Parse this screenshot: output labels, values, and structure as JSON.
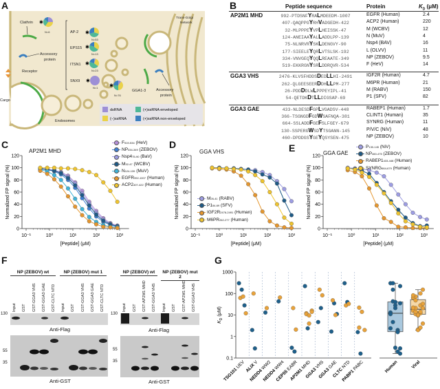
{
  "panels": {
    "a": "A",
    "b": "B",
    "c": "C",
    "d": "D",
    "e": "E",
    "f": "F",
    "g": "G"
  },
  "panel_a": {
    "clathrin": "Clathrin",
    "n_clathrin": "N=6",
    "ap2": "AP-2",
    "n_ap2": "N=53",
    "eps15": "EPS15",
    "n_eps15": "N=13",
    "itsn1": "ITSN1",
    "n_itsn1": "N=23",
    "snx9": "SNX9",
    "n_snx9": "N=1",
    "gga": "GGA1-3",
    "n_gga": "N=76",
    "accessory_left_1": "Accessory",
    "accessory_left_2": "protein",
    "accessory_right_1": "Accessory",
    "accessory_right_2": "protein",
    "receptor": "Receptor",
    "cargo": "Cargo",
    "endosomes": "Endosomes",
    "tgn_1": "Trans-Golgi",
    "tgn_2": "Network",
    "legend": [
      {
        "label": "dsRNA",
        "color": "#9d8fd6"
      },
      {
        "label": "(−)ssRNA",
        "color": "#ead24a"
      },
      {
        "label": "(+)ssRNA enveloped",
        "color": "#4fb897"
      },
      {
        "label": "(+)ssRNA non-enveloped",
        "color": "#3c7fbf"
      }
    ]
  },
  "table": {
    "headers": {
      "sequence": "Peptide sequence",
      "protein": "Protein",
      "kd": "K",
      "kd_sub": "D",
      "kd_unit": " (μM)"
    },
    "groups": [
      {
        "name": "AP2M1 MHD",
        "rows": [
          {
            "seq": [
              "992-PTDSNF",
              "Y",
              "RA",
              "L",
              "MDEEDM-1007"
            ],
            "protein": "EGFR (Human)",
            "kd": "2.4"
          },
          {
            "seq": [
              "407-QAQPPG",
              "Y",
              "RH",
              "V",
              "ADGEDH-422"
            ],
            "protein": "ACP2 (Human)",
            "kd": "220"
          },
          {
            "seq": [
              "32-MLPPPE",
              "Y",
              "VP",
              "L",
              "HEISSK-47"
            ],
            "protein": "M (WCBV)",
            "kd": "12"
          },
          {
            "seq": [
              "124-ANEIAA",
              "Y",
              "AL",
              "L",
              "ADDLPP-139"
            ],
            "protein": "N (MuV)",
            "kd": "4"
          },
          {
            "seq": [
              "75-NLNRVR",
              "Y",
              "SK",
              "L",
              "DENGVY-90"
            ],
            "protein": "Nsp4 (BAV)",
            "kd": "16"
          },
          {
            "seq": [
              "177-SIEELE",
              "Y",
              "QR",
              "L",
              "VTSLSK-192"
            ],
            "protein": "L (OLVV)",
            "kd": "11"
          },
          {
            "seq": [
              "334-VNVGEQ",
              "Y",
              "QQ",
              "L",
              "REAATE-349"
            ],
            "protein": "NP (ZEBOV)",
            "kd": "9.5"
          },
          {
            "seq": [
              "519-EKKRGN",
              "Y",
              "SR",
              "L",
              "DDRQVR-534"
            ],
            "protein": "F (HeV)",
            "kd": "14"
          }
        ]
      },
      {
        "name": "GGA3 VHS",
        "rows": [
          {
            "seq": [
              "2476-KLVSFHDDS",
              "D",
              "ED",
              "LL",
              "HI-2491"
            ],
            "protein": "IGF2R (Human)",
            "kd": "4.7"
          },
          {
            "seq": [
              "262-QLGEESEER",
              "D",
              "DH",
              "LL",
              "PM-277"
            ],
            "protein": "M6PR (Human)",
            "kd": "21"
          },
          {
            "seq": [
              "26-PDD",
              "D",
              "DLW",
              "L",
              "PPPEYIPL-41"
            ],
            "protein": "M (RABV)",
            "kd": "150"
          },
          {
            "seq": [
              "54-QETDK",
              "D",
              "T",
              "LL",
              "DIGSAP-69"
            ],
            "protein": "P1 (SFV)",
            "kd": "82"
          }
        ]
      },
      {
        "name": "GGA3 GAE",
        "rows": [
          {
            "seq": [
              "433-NLDESD",
              "F",
              "GP",
              "L",
              "VGADSV-448"
            ],
            "protein": "RABEP1 (Human)",
            "kd": "1.7"
          },
          {
            "seq": [
              "366-TSGNGD",
              "F",
              "GD",
              "W",
              "SAFNQA-381"
            ],
            "protein": "CLINT1 (Human)",
            "kd": "35"
          },
          {
            "seq": [
              "664-SSLADD",
              "F",
              "GE",
              "F",
              "SLFGEY-679"
            ],
            "protein": "SYNRG (Human)",
            "kd": "11"
          },
          {
            "seq": [
              "130-SSPERG",
              "W",
              "SD",
              "Y",
              "TSGANN-145"
            ],
            "protein": "P/V/C (NiV)",
            "kd": "48"
          },
          {
            "seq": [
              "460-DPDDGS",
              "Y",
              "GE",
              "Y",
              "QSYSEN-475"
            ],
            "protein": "NP (ZEBOV)",
            "kd": "10"
          }
        ]
      }
    ]
  },
  "chart_data": [
    {
      "id": "C",
      "type": "line",
      "title": "AP2M1 MHD",
      "xlabel": "[Peptide] (μM)",
      "ylabel": "Normalized FP signal (%)",
      "xscale": "log",
      "xlim": [
        0.1,
        1000
      ],
      "ylim": [
        0,
        120
      ],
      "xticks": [
        "10⁻¹",
        "10⁰",
        "10¹",
        "10²",
        "10³"
      ],
      "yticks": [
        0,
        20,
        40,
        60,
        80,
        100,
        120
      ],
      "legend": "top-right",
      "x": [
        0.4,
        0.8,
        1.6,
        3.1,
        6.2,
        12.5,
        25,
        50,
        100,
        200,
        400,
        800
      ],
      "series": [
        {
          "name": "F",
          "sub": "519-534",
          "host": "(HeV)",
          "color": "#b48fd8",
          "y": [
            99,
            98,
            96,
            93,
            87,
            76,
            62,
            44,
            29,
            17,
            9,
            5
          ]
        },
        {
          "name": "NP",
          "sub": "334-349",
          "host": "(ZEBOV)",
          "color": "#3f7fd4",
          "y": [
            98,
            97,
            94,
            89,
            80,
            67,
            50,
            33,
            20,
            11,
            6,
            3
          ]
        },
        {
          "name": "Nsp4",
          "sub": "75-90",
          "host": "(BaV)",
          "color": "#9d9de3",
          "y": [
            99,
            98,
            96,
            92,
            85,
            74,
            58,
            41,
            26,
            15,
            8,
            4
          ]
        },
        {
          "name": "M",
          "sub": "32-47",
          "host": "(WCBV)",
          "color": "#1e5a86",
          "y": [
            99,
            97,
            95,
            91,
            83,
            71,
            55,
            38,
            23,
            13,
            7,
            4
          ]
        },
        {
          "name": "N",
          "sub": "124-139",
          "host": "(MuV)",
          "color": "#40b4d8",
          "y": [
            97,
            94,
            88,
            80,
            66,
            49,
            32,
            19,
            11,
            6,
            3,
            2
          ]
        },
        {
          "name": "EGFR",
          "sub": "992-1007",
          "host": "(Human)",
          "color": "#e5962e",
          "y": [
            95,
            90,
            81,
            69,
            53,
            36,
            22,
            12,
            7,
            3,
            2,
            1
          ]
        },
        {
          "name": "ACP2",
          "sub": "407-422",
          "host": "(Human)",
          "color": "#efc42e",
          "y": [
            100,
            100,
            100,
            99,
            99,
            98,
            96,
            93,
            88,
            76,
            62,
            44
          ]
        }
      ]
    },
    {
      "id": "D",
      "type": "line",
      "title": "GGA VHS",
      "xlabel": "[Peptide] (μM)",
      "ylabel": "Normalized FP signal (%)",
      "xscale": "log",
      "xlim": [
        0.1,
        1000
      ],
      "ylim": [
        0,
        120
      ],
      "xticks": [
        "10⁻¹",
        "10⁰",
        "10¹",
        "10²",
        "10³"
      ],
      "yticks": [
        0,
        20,
        40,
        60,
        80,
        100,
        120
      ],
      "legend": "center-left",
      "x": [
        0.5,
        1,
        2,
        4,
        8,
        16,
        31,
        62,
        125,
        250,
        500,
        1000
      ],
      "series": [
        {
          "name": "M",
          "sub": "26-41",
          "host": "(RABV)",
          "color": "#9d9de3",
          "y": [
            100,
            100,
            99,
            99,
            98,
            97,
            96,
            93,
            88,
            78,
            65,
            45
          ]
        },
        {
          "name": "P1",
          "sub": "54-69",
          "host": "(SFV)",
          "color": "#1e5a86",
          "y": [
            100,
            100,
            99,
            99,
            98,
            97,
            94,
            89,
            84,
            74,
            46,
            22
          ]
        },
        {
          "name": "IGF2R",
          "sub": "2476-2491",
          "host": "(Human)",
          "color": "#e5962e",
          "y": [
            99,
            98,
            97,
            94,
            87,
            73,
            55,
            28,
            12,
            5,
            2,
            1
          ]
        },
        {
          "name": "M6PR",
          "sub": "262-277",
          "host": "(Human)",
          "color": "#efc42e",
          "y": [
            100,
            99,
            99,
            98,
            97,
            94,
            88,
            78,
            60,
            40,
            18,
            8
          ]
        }
      ]
    },
    {
      "id": "E",
      "type": "line",
      "title": "GGA GAE",
      "xlabel": "[Peptide] (μM)",
      "ylabel": "Normalized FP signal (%)",
      "xscale": "log",
      "xlim": [
        0.1,
        1000
      ],
      "ylim": [
        0,
        120
      ],
      "xticks": [
        "10⁻¹",
        "10⁰",
        "10¹",
        "10²",
        "10³"
      ],
      "yticks": [
        0,
        20,
        40,
        60,
        80,
        100,
        120
      ],
      "legend": "top-right",
      "x": [
        0.7,
        1.4,
        2.7,
        5.4,
        11,
        22,
        43,
        86,
        172,
        344,
        688,
        1300
      ],
      "series": [
        {
          "name": "P",
          "sub": "130-145",
          "host": "(NiV)",
          "color": "#9d9de3",
          "y": [
            100,
            99,
            98,
            96,
            92,
            86,
            72,
            56,
            40,
            26,
            19,
            15
          ]
        },
        {
          "name": "NP",
          "sub": "460-475",
          "host": "(ZEBOV)",
          "color": "#1e5a86",
          "y": [
            99,
            98,
            95,
            90,
            75,
            60,
            45,
            31,
            18,
            9,
            4,
            5
          ]
        },
        {
          "name": "RABEP1",
          "sub": "433-448",
          "host": "(Human)",
          "color": "#e5962e",
          "y": [
            96,
            93,
            86,
            66,
            38,
            17,
            11,
            3,
            2,
            1,
            1,
            1
          ]
        },
        {
          "name": "SYNRG",
          "sub": "664-679",
          "host": "(Human)",
          "color": "#efc42e",
          "y": [
            99,
            97,
            92,
            85,
            72,
            58,
            42,
            25,
            12,
            7,
            3,
            2
          ]
        }
      ]
    },
    {
      "id": "G",
      "type": "scatter",
      "ylabel": "K",
      "ylabel_sub": "D",
      "ylabel_unit": " (μM)",
      "yscale": "log",
      "ylim": [
        0.1,
        1000
      ],
      "yticks": [
        "0.1",
        "1",
        "10",
        "100",
        "1000"
      ],
      "grid": false,
      "colors": {
        "human": "#1e5f8a",
        "viral": "#e8a23a"
      },
      "categories": [
        {
          "bold": "TSG101",
          "rest": " UEV",
          "human": [
            300,
            150,
            28
          ],
          "viral": [
            62,
            72,
            12
          ]
        },
        {
          "bold": "ALIX",
          "rest": " V",
          "human": [
            2,
            0.28
          ],
          "viral": [
            100
          ]
        },
        {
          "bold": "NEDD4",
          "rest": " WW2",
          "human": [
            13
          ],
          "viral": [
            21
          ]
        },
        {
          "bold": "NEDD4",
          "rest": " WW4",
          "human": [
            43
          ],
          "viral": [
            65
          ]
        },
        {
          "bold": "CEP55",
          "rest": " EABR",
          "human": [
            0.3,
            0.2
          ],
          "viral": [
            21,
            2.1
          ]
        },
        {
          "bold": "AP2M1",
          "rest": " MHD",
          "human": [
            220,
            2.4
          ],
          "viral": [
            12,
            4,
            16,
            11,
            9.5,
            14
          ]
        },
        {
          "bold": "GGA3",
          "rest": " VHS",
          "human": [
            4.7,
            21
          ],
          "viral": [
            150,
            82
          ]
        },
        {
          "bold": "GGA3",
          "rest": " GAE",
          "human": [
            1.7,
            35,
            11
          ],
          "viral": [
            48,
            10
          ]
        },
        {
          "bold": "CLTC",
          "rest": " NTD",
          "human": [
            300,
            40
          ],
          "viral": [
            28,
            33
          ]
        },
        {
          "bold": "PABP1",
          "rest": " PABC",
          "human": [
            1.6,
            0.16
          ],
          "viral": [
            22,
            14,
            2,
            2.6
          ]
        }
      ],
      "box_labels": {
        "human": "Human",
        "viral": "Viral"
      }
    }
  ],
  "panel_f": {
    "left_headers": [
      "NP (ZEBOV) wt",
      "NP (ZEBOV) mut 1"
    ],
    "right_headers": [
      "NP (ZEBOV) wt",
      "NP (ZEBOV) mut 2"
    ],
    "left_lanes": [
      "Input",
      "GST",
      "GST-GGA3 VHS",
      "GST-GGA3 GAE",
      "GST-CLTC NTD",
      "Input",
      "GST",
      "GST-GGA3 VHS",
      "GST-GGA3 GAE",
      "GST-CLTC NTD"
    ],
    "right_lanes": [
      "Input",
      "GST",
      "GST-AP2M1 MHD",
      "GST-GGA3 VHS",
      "Input",
      "GST",
      "GST-AP2M1 MHD",
      "GST-GGA3 VHS"
    ],
    "anti_flag": "Anti-Flag",
    "anti_gst": "Anti-GST",
    "mw": {
      "m130": "130",
      "m55": "55",
      "m35": "35"
    }
  }
}
